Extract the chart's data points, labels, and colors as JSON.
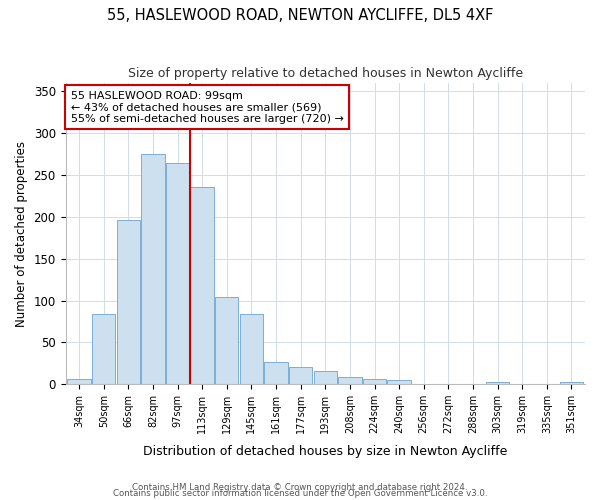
{
  "title": "55, HASLEWOOD ROAD, NEWTON AYCLIFFE, DL5 4XF",
  "subtitle": "Size of property relative to detached houses in Newton Aycliffe",
  "xlabel": "Distribution of detached houses by size in Newton Aycliffe",
  "ylabel": "Number of detached properties",
  "bar_color": "#cce0f0",
  "bar_edge_color": "#7bafd4",
  "categories": [
    "34sqm",
    "50sqm",
    "66sqm",
    "82sqm",
    "97sqm",
    "113sqm",
    "129sqm",
    "145sqm",
    "161sqm",
    "177sqm",
    "193sqm",
    "208sqm",
    "224sqm",
    "240sqm",
    "256sqm",
    "272sqm",
    "288sqm",
    "303sqm",
    "319sqm",
    "335sqm",
    "351sqm"
  ],
  "values": [
    6,
    84,
    196,
    275,
    265,
    236,
    104,
    84,
    27,
    20,
    16,
    8,
    6,
    5,
    0,
    0,
    0,
    2,
    0,
    0,
    2
  ],
  "vline_x_index": 4,
  "vline_color": "#cc0000",
  "annotation_title": "55 HASLEWOOD ROAD: 99sqm",
  "annotation_line1": "← 43% of detached houses are smaller (569)",
  "annotation_line2": "55% of semi-detached houses are larger (720) →",
  "annotation_box_color": "#ffffff",
  "annotation_box_edge": "#cc0000",
  "footer_line1": "Contains HM Land Registry data © Crown copyright and database right 2024.",
  "footer_line2": "Contains public sector information licensed under the Open Government Licence v3.0.",
  "ylim": [
    0,
    360
  ],
  "background_color": "#ffffff",
  "title_fontsize": 10.5,
  "subtitle_fontsize": 9,
  "grid_color": "#d0dce8"
}
